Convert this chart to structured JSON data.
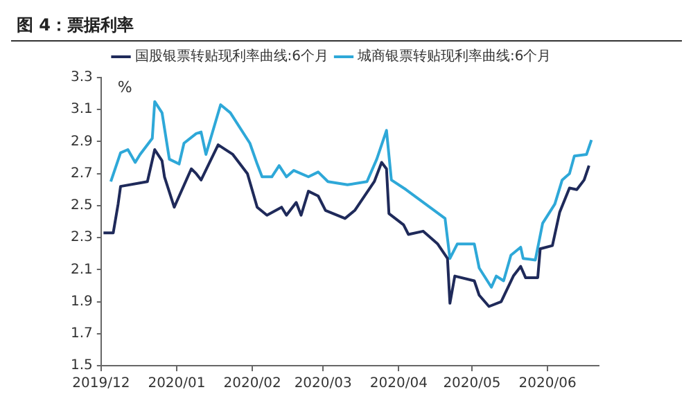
{
  "chart_data": {
    "type": "line",
    "title": "图 4：票据利率",
    "ylabel": "%",
    "xlim": [
      "2019-12-01",
      "2020-06-22"
    ],
    "xticks": [
      {
        "value": "2019-12-01",
        "label": "2019/12"
      },
      {
        "value": "2020-01-01",
        "label": "2020/01"
      },
      {
        "value": "2020-02-01",
        "label": "2020/02"
      },
      {
        "value": "2020-03-01",
        "label": "2020/03"
      },
      {
        "value": "2020-04-01",
        "label": "2020/04"
      },
      {
        "value": "2020-05-01",
        "label": "2020/05"
      },
      {
        "value": "2020-06-01",
        "label": "2020/06"
      }
    ],
    "ylim": [
      1.5,
      3.3
    ],
    "yticks": [
      1.5,
      1.7,
      1.9,
      2.1,
      2.3,
      2.5,
      2.7,
      2.9,
      3.1,
      3.3
    ],
    "grid": false,
    "legend": "top",
    "marker": "none",
    "line_style": "solid",
    "series": [
      {
        "name": "国股银票转贴现利率曲线:6个月",
        "color": "#1f2a5a",
        "x": [
          "2019-12-02",
          "2019-12-06",
          "2019-12-08",
          "2019-12-09",
          "2019-12-20",
          "2019-12-23",
          "2019-12-26",
          "2019-12-27",
          "2019-12-31",
          "2020-01-07",
          "2020-01-09",
          "2020-01-11",
          "2020-01-18",
          "2020-01-24",
          "2020-01-30",
          "2020-02-03",
          "2020-02-07",
          "2020-02-13",
          "2020-02-15",
          "2020-02-19",
          "2020-02-21",
          "2020-02-24",
          "2020-02-28",
          "2020-03-02",
          "2020-03-10",
          "2020-03-14",
          "2020-03-22",
          "2020-03-25",
          "2020-03-27",
          "2020-03-28",
          "2020-04-03",
          "2020-04-05",
          "2020-04-11",
          "2020-04-17",
          "2020-04-21",
          "2020-04-22",
          "2020-04-24",
          "2020-05-02",
          "2020-05-04",
          "2020-05-08",
          "2020-05-13",
          "2020-05-18",
          "2020-05-21",
          "2020-05-23",
          "2020-05-28",
          "2020-05-29",
          "2020-06-03",
          "2020-06-06",
          "2020-06-10",
          "2020-06-13",
          "2020-06-16",
          "2020-06-18"
        ],
        "values": [
          2.33,
          2.33,
          2.51,
          2.62,
          2.65,
          2.85,
          2.78,
          2.68,
          2.49,
          2.73,
          2.7,
          2.66,
          2.88,
          2.82,
          2.7,
          2.49,
          2.44,
          2.49,
          2.44,
          2.52,
          2.44,
          2.59,
          2.56,
          2.47,
          2.42,
          2.47,
          2.65,
          2.77,
          2.73,
          2.45,
          2.38,
          2.32,
          2.34,
          2.26,
          2.17,
          1.89,
          2.06,
          2.03,
          1.94,
          1.87,
          1.9,
          2.06,
          2.12,
          2.05,
          2.05,
          2.23,
          2.25,
          2.46,
          2.61,
          2.6,
          2.66,
          2.75
        ]
      },
      {
        "name": "城商银票转贴现利率曲线:6个月",
        "color": "#2ea8d8",
        "x": [
          "2019-12-05",
          "2019-12-09",
          "2019-12-12",
          "2019-12-15",
          "2019-12-17",
          "2019-12-22",
          "2019-12-23",
          "2019-12-26",
          "2019-12-29",
          "2020-01-02",
          "2020-01-04",
          "2020-01-09",
          "2020-01-11",
          "2020-01-13",
          "2020-01-19",
          "2020-01-23",
          "2020-01-31",
          "2020-02-03",
          "2020-02-05",
          "2020-02-09",
          "2020-02-12",
          "2020-02-15",
          "2020-02-18",
          "2020-02-24",
          "2020-02-28",
          "2020-03-03",
          "2020-03-11",
          "2020-03-19",
          "2020-03-23",
          "2020-03-27",
          "2020-03-29",
          "2020-04-04",
          "2020-04-12",
          "2020-04-20",
          "2020-04-22",
          "2020-04-25",
          "2020-05-02",
          "2020-05-04",
          "2020-05-09",
          "2020-05-11",
          "2020-05-14",
          "2020-05-17",
          "2020-05-21",
          "2020-05-22",
          "2020-05-27",
          "2020-05-30",
          "2020-06-04",
          "2020-06-07",
          "2020-06-10",
          "2020-06-12",
          "2020-06-17",
          "2020-06-19"
        ],
        "values": [
          2.65,
          2.83,
          2.85,
          2.77,
          2.82,
          2.92,
          3.15,
          3.08,
          2.79,
          2.76,
          2.89,
          2.95,
          2.96,
          2.82,
          3.13,
          3.08,
          2.89,
          2.76,
          2.68,
          2.68,
          2.75,
          2.68,
          2.72,
          2.68,
          2.71,
          2.65,
          2.63,
          2.65,
          2.79,
          2.97,
          2.66,
          2.6,
          2.51,
          2.42,
          2.17,
          2.26,
          2.26,
          2.11,
          1.99,
          2.06,
          2.03,
          2.19,
          2.24,
          2.17,
          2.16,
          2.39,
          2.51,
          2.66,
          2.7,
          2.81,
          2.82,
          2.91
        ]
      }
    ]
  }
}
